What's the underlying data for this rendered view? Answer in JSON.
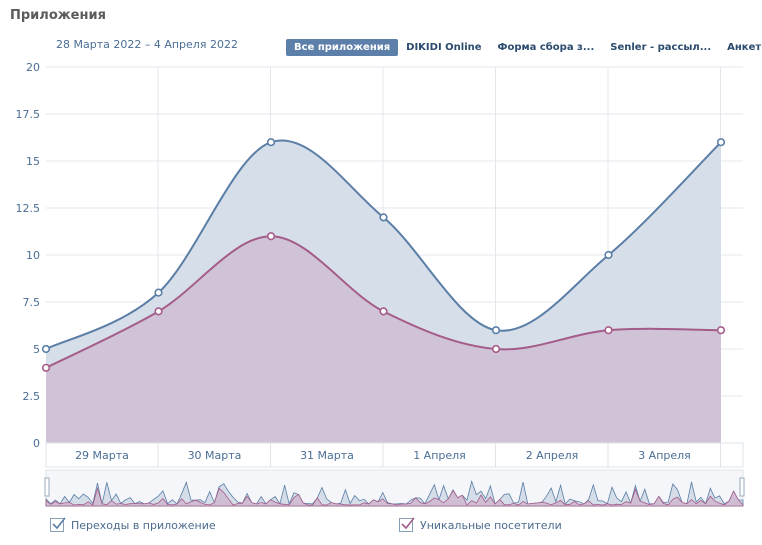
{
  "header": {
    "title": "Приложения",
    "date_range": "28 Марта 2022 – 4 Апреля 2022"
  },
  "tabs": [
    {
      "label": "Все приложения",
      "active": true
    },
    {
      "label": "DIKIDI Online",
      "active": false
    },
    {
      "label": "Форма сбора з...",
      "active": false
    },
    {
      "label": "Senler - рассыл...",
      "active": false
    },
    {
      "label": "Анкеты",
      "active": false
    }
  ],
  "legend": [
    {
      "label": "Переходы в приложение",
      "checked": true,
      "color": "#5b7ea6"
    },
    {
      "label": "Уникальные посетители",
      "checked": true,
      "color": "#a45c8a"
    }
  ],
  "colors": {
    "series1_line": "#5b7ea6",
    "series1_fill": "#d4dde8",
    "series2_line": "#a45c8a",
    "series2_fill": "#cfbdd3",
    "axis_text": "#4a6e94",
    "grid": "#e3e7ec",
    "active_tab": "#5d80ab"
  },
  "chart_data": {
    "type": "area",
    "x_ticks": [
      "29 Марта",
      "30 Марта",
      "31 Марта",
      "1 Апреля",
      "2 Апреля",
      "3 Апреля"
    ],
    "ylim": [
      0,
      20
    ],
    "y_ticks": [
      "0",
      "2.5",
      "5",
      "7.5",
      "10",
      "12.5",
      "15",
      "17.5",
      "20"
    ],
    "y_tick_values": [
      0,
      2.5,
      5,
      7.5,
      10,
      12.5,
      15,
      17.5,
      20
    ],
    "grid": true,
    "series": [
      {
        "name": "Переходы в приложение",
        "values": [
          5,
          8,
          16,
          12,
          6,
          10,
          16
        ]
      },
      {
        "name": "Уникальные посетители",
        "values": [
          4,
          7,
          11,
          7,
          5,
          6,
          6
        ]
      }
    ]
  }
}
